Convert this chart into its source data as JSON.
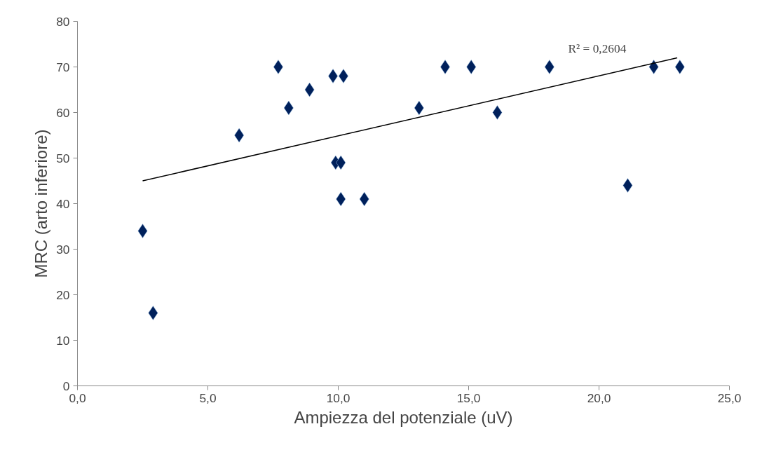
{
  "chart_data": {
    "type": "scatter",
    "xlabel": "Ampiezza del potenziale (uV)",
    "ylabel": "MRC (arto inferiore)",
    "grid": false,
    "xlim": [
      0,
      25
    ],
    "ylim": [
      0,
      80
    ],
    "xticks": [
      {
        "value": 0,
        "label": "0,0"
      },
      {
        "value": 5,
        "label": "5,0"
      },
      {
        "value": 10,
        "label": "10,0"
      },
      {
        "value": 15,
        "label": "15,0"
      },
      {
        "value": 20,
        "label": "20,0"
      },
      {
        "value": 25,
        "label": "25,0"
      }
    ],
    "yticks": [
      0,
      10,
      20,
      30,
      40,
      50,
      60,
      70,
      80
    ],
    "series": [
      {
        "marker": "diamond",
        "color": "#00205b",
        "x": [
          2.5,
          2.9,
          6.2,
          7.7,
          8.1,
          8.9,
          9.8,
          10.2,
          9.9,
          10.1,
          10.1,
          11.0,
          13.1,
          14.1,
          15.1,
          16.1,
          18.1,
          21.1,
          22.1,
          23.1
        ],
        "values": [
          34,
          16,
          55,
          70,
          61,
          65,
          68,
          68,
          49,
          49,
          41,
          41,
          61,
          70,
          70,
          60,
          70,
          44,
          70,
          70
        ]
      },
      {
        "type": "line",
        "color": "#000000",
        "x": [
          2.5,
          23.0
        ],
        "values": [
          45,
          72
        ]
      }
    ],
    "annotations": [
      "R² = 0,2604"
    ]
  }
}
